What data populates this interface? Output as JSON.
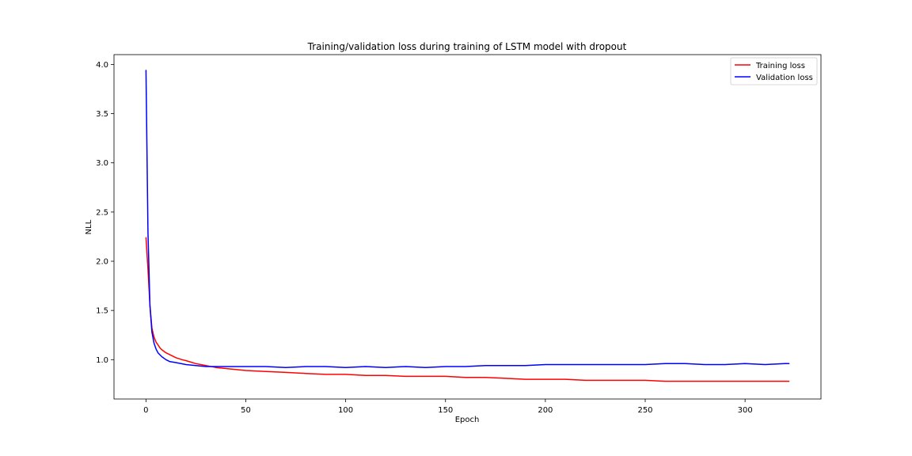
{
  "chart_data": {
    "type": "line",
    "title": "Training/validation loss during training of LSTM model with dropout",
    "xlabel": "Epoch",
    "ylabel": "NLL",
    "xlim": [
      -16,
      338
    ],
    "ylim": [
      0.6,
      4.1
    ],
    "xticks": [
      0,
      50,
      100,
      150,
      200,
      250,
      300
    ],
    "yticks": [
      1.0,
      1.5,
      2.0,
      2.5,
      3.0,
      3.5,
      4.0
    ],
    "xtick_labels": [
      "0",
      "50",
      "100",
      "150",
      "200",
      "250",
      "300"
    ],
    "ytick_labels": [
      "1.0",
      "1.5",
      "2.0",
      "2.5",
      "3.0",
      "3.5",
      "4.0"
    ],
    "grid": false,
    "legend_position": "top-right",
    "series": [
      {
        "name": "Training loss",
        "color": "#ff0000",
        "x": [
          0,
          1,
          2,
          3,
          4,
          5,
          6,
          7,
          8,
          10,
          12,
          15,
          18,
          20,
          25,
          30,
          35,
          40,
          45,
          50,
          60,
          70,
          80,
          90,
          100,
          110,
          120,
          130,
          140,
          150,
          160,
          170,
          180,
          190,
          200,
          210,
          220,
          230,
          240,
          250,
          260,
          270,
          280,
          290,
          300,
          310,
          320,
          322
        ],
        "y": [
          2.24,
          1.92,
          1.55,
          1.32,
          1.23,
          1.18,
          1.15,
          1.12,
          1.1,
          1.07,
          1.05,
          1.02,
          1.0,
          0.99,
          0.96,
          0.94,
          0.92,
          0.91,
          0.9,
          0.89,
          0.88,
          0.87,
          0.86,
          0.85,
          0.85,
          0.84,
          0.84,
          0.83,
          0.83,
          0.83,
          0.82,
          0.82,
          0.81,
          0.8,
          0.8,
          0.8,
          0.79,
          0.79,
          0.79,
          0.79,
          0.78,
          0.78,
          0.78,
          0.78,
          0.78,
          0.78,
          0.78,
          0.78
        ]
      },
      {
        "name": "Validation loss",
        "color": "#0000ff",
        "x": [
          0,
          1,
          2,
          3,
          4,
          5,
          6,
          8,
          10,
          12,
          15,
          20,
          25,
          30,
          40,
          50,
          60,
          70,
          80,
          90,
          100,
          110,
          120,
          130,
          140,
          150,
          160,
          170,
          180,
          190,
          200,
          210,
          220,
          230,
          240,
          250,
          260,
          270,
          280,
          290,
          300,
          310,
          320,
          322
        ],
        "y": [
          3.94,
          2.3,
          1.55,
          1.28,
          1.17,
          1.11,
          1.07,
          1.03,
          1.0,
          0.98,
          0.97,
          0.95,
          0.94,
          0.93,
          0.93,
          0.93,
          0.93,
          0.92,
          0.93,
          0.93,
          0.92,
          0.93,
          0.92,
          0.93,
          0.92,
          0.93,
          0.93,
          0.94,
          0.94,
          0.94,
          0.95,
          0.95,
          0.95,
          0.95,
          0.95,
          0.95,
          0.96,
          0.96,
          0.95,
          0.95,
          0.96,
          0.95,
          0.96,
          0.96
        ]
      }
    ]
  }
}
